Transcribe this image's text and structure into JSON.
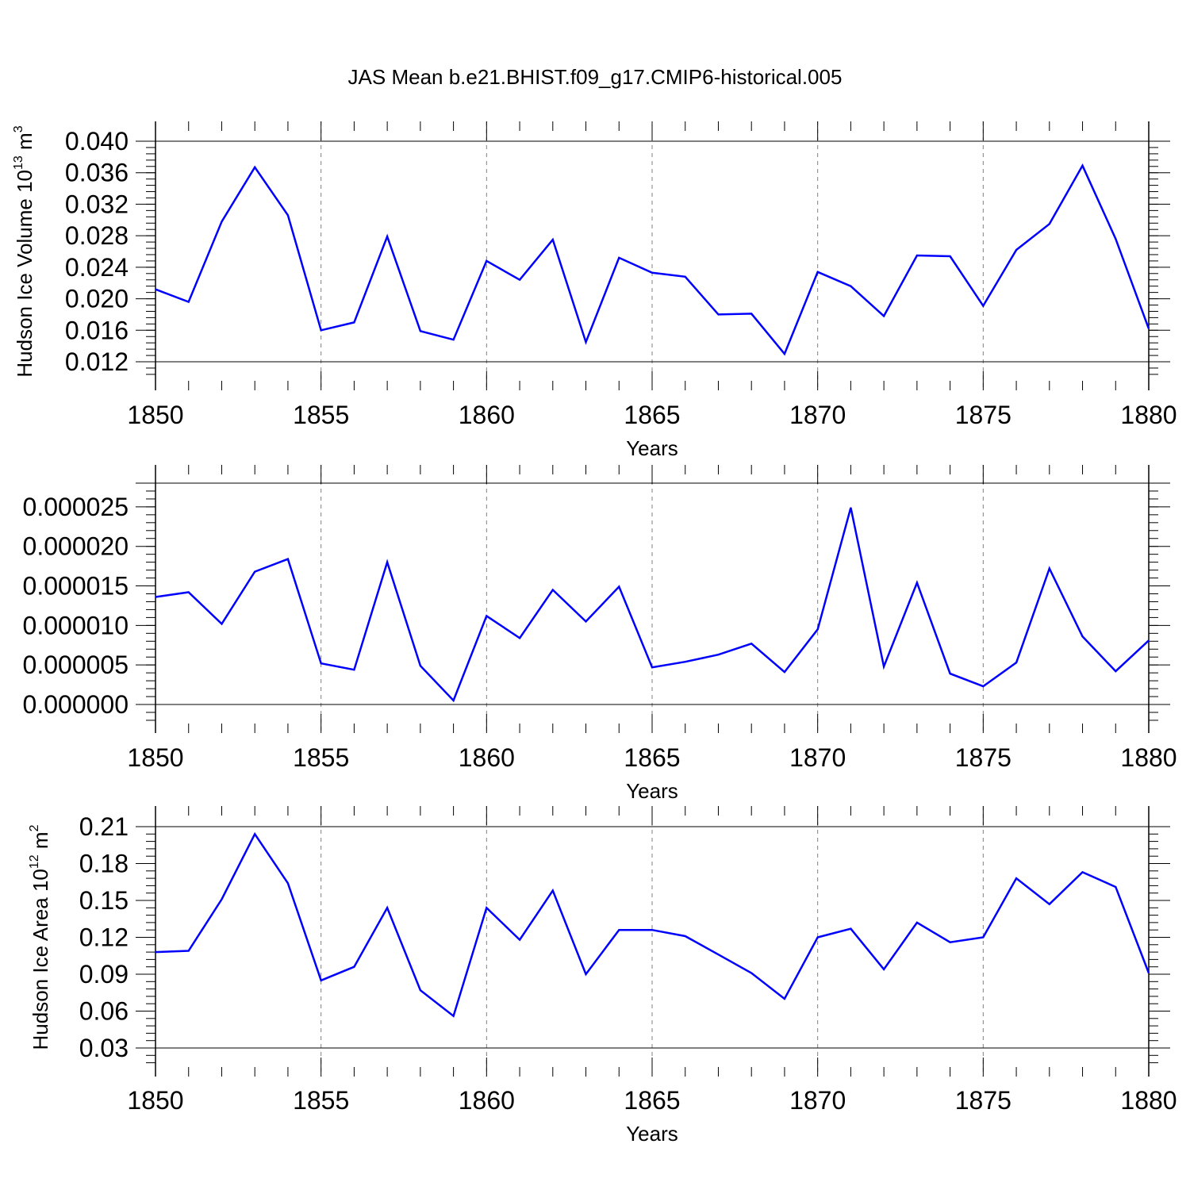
{
  "title": "JAS Mean b.e21.BHIST.f09_g17.CMIP6-historical.005",
  "colors": {
    "line": "#0000ff",
    "axis": "#000000",
    "grid": "#808080"
  },
  "chart_data": [
    {
      "type": "line",
      "ylabel_parts": [
        "Hudson Ice Volume 10",
        "13",
        " m",
        "3"
      ],
      "xlabel": "Years",
      "xlim": [
        1850,
        1880
      ],
      "ylim": [
        0.012,
        0.04
      ],
      "xticks": [
        "1850",
        "1855",
        "1860",
        "1865",
        "1870",
        "1875",
        "1880"
      ],
      "yticks": [
        0.012,
        0.016,
        0.02,
        0.024,
        0.028,
        0.032,
        0.036,
        0.04
      ],
      "ytick_labels": [
        "0.012",
        "0.016",
        "0.020",
        "0.024",
        "0.028",
        "0.032",
        "0.036",
        "0.040"
      ],
      "grid": "vertical dashed at 1855, 1860, 1865, 1870, 1875",
      "x": [
        1850,
        1851,
        1852,
        1853,
        1854,
        1855,
        1856,
        1857,
        1858,
        1859,
        1860,
        1861,
        1862,
        1863,
        1864,
        1865,
        1866,
        1867,
        1868,
        1869,
        1870,
        1871,
        1872,
        1873,
        1874,
        1875,
        1876,
        1877,
        1878,
        1879,
        1880
      ],
      "values": [
        0.0212,
        0.0196,
        0.0298,
        0.0367,
        0.0306,
        0.016,
        0.017,
        0.0279,
        0.0159,
        0.0148,
        0.0248,
        0.0224,
        0.0275,
        0.0145,
        0.0252,
        0.0233,
        0.0228,
        0.018,
        0.0181,
        0.013,
        0.0234,
        0.0216,
        0.0178,
        0.0255,
        0.0254,
        0.0191,
        0.0262,
        0.0295,
        0.0369,
        0.0276,
        0.0162
      ]
    },
    {
      "type": "line",
      "ylabel_parts": [
        "",
        "",
        "",
        ""
      ],
      "xlabel": "Years",
      "xlim": [
        1850,
        1880
      ],
      "ylim": [
        0,
        2.8e-05
      ],
      "xticks": [
        "1850",
        "1855",
        "1860",
        "1865",
        "1870",
        "1875",
        "1880"
      ],
      "yticks": [
        0,
        5e-06,
        1e-05,
        1.5e-05,
        2e-05,
        2.5e-05
      ],
      "ytick_labels": [
        "0.000000",
        "0.000005",
        "0.000010",
        "0.000015",
        "0.000020",
        "0.000025"
      ],
      "grid": "vertical dashed at 1855, 1860, 1865, 1870, 1875",
      "x": [
        1850,
        1851,
        1852,
        1853,
        1854,
        1855,
        1856,
        1857,
        1858,
        1859,
        1860,
        1861,
        1862,
        1863,
        1864,
        1865,
        1866,
        1867,
        1868,
        1869,
        1870,
        1871,
        1872,
        1873,
        1874,
        1875,
        1876,
        1877,
        1878,
        1879,
        1880
      ],
      "values": [
        1.36e-05,
        1.42e-05,
        1.02e-05,
        1.68e-05,
        1.84e-05,
        5.2e-06,
        4.4e-06,
        1.8e-05,
        4.9e-06,
        5e-07,
        1.12e-05,
        8.4e-06,
        1.45e-05,
        1.05e-05,
        1.49e-05,
        4.7e-06,
        5.4e-06,
        6.3e-06,
        7.7e-06,
        4.1e-06,
        9.5e-06,
        2.49e-05,
        4.8e-06,
        1.54e-05,
        3.9e-06,
        2.3e-06,
        5.3e-06,
        1.72e-05,
        8.6e-06,
        4.2e-06,
        8.1e-06
      ]
    },
    {
      "type": "line",
      "ylabel_parts": [
        "Hudson Ice Area 10",
        "12",
        " m",
        "2"
      ],
      "xlabel": "Years",
      "xlim": [
        1850,
        1880
      ],
      "ylim": [
        0.03,
        0.21
      ],
      "xticks": [
        "1850",
        "1855",
        "1860",
        "1865",
        "1870",
        "1875",
        "1880"
      ],
      "yticks": [
        0.03,
        0.06,
        0.09,
        0.12,
        0.15,
        0.18,
        0.21
      ],
      "ytick_labels": [
        "0.03",
        "0.06",
        "0.09",
        "0.12",
        "0.15",
        "0.18",
        "0.21"
      ],
      "grid": "vertical dashed at 1855, 1860, 1865, 1870, 1875",
      "x": [
        1850,
        1851,
        1852,
        1853,
        1854,
        1855,
        1856,
        1857,
        1858,
        1859,
        1860,
        1861,
        1862,
        1863,
        1864,
        1865,
        1866,
        1867,
        1868,
        1869,
        1870,
        1871,
        1872,
        1873,
        1874,
        1875,
        1876,
        1877,
        1878,
        1879,
        1880
      ],
      "values": [
        0.108,
        0.109,
        0.151,
        0.204,
        0.164,
        0.085,
        0.096,
        0.144,
        0.077,
        0.056,
        0.144,
        0.118,
        0.158,
        0.09,
        0.126,
        0.126,
        0.121,
        0.106,
        0.091,
        0.07,
        0.12,
        0.127,
        0.094,
        0.132,
        0.116,
        0.12,
        0.168,
        0.147,
        0.173,
        0.161,
        0.091
      ]
    }
  ]
}
